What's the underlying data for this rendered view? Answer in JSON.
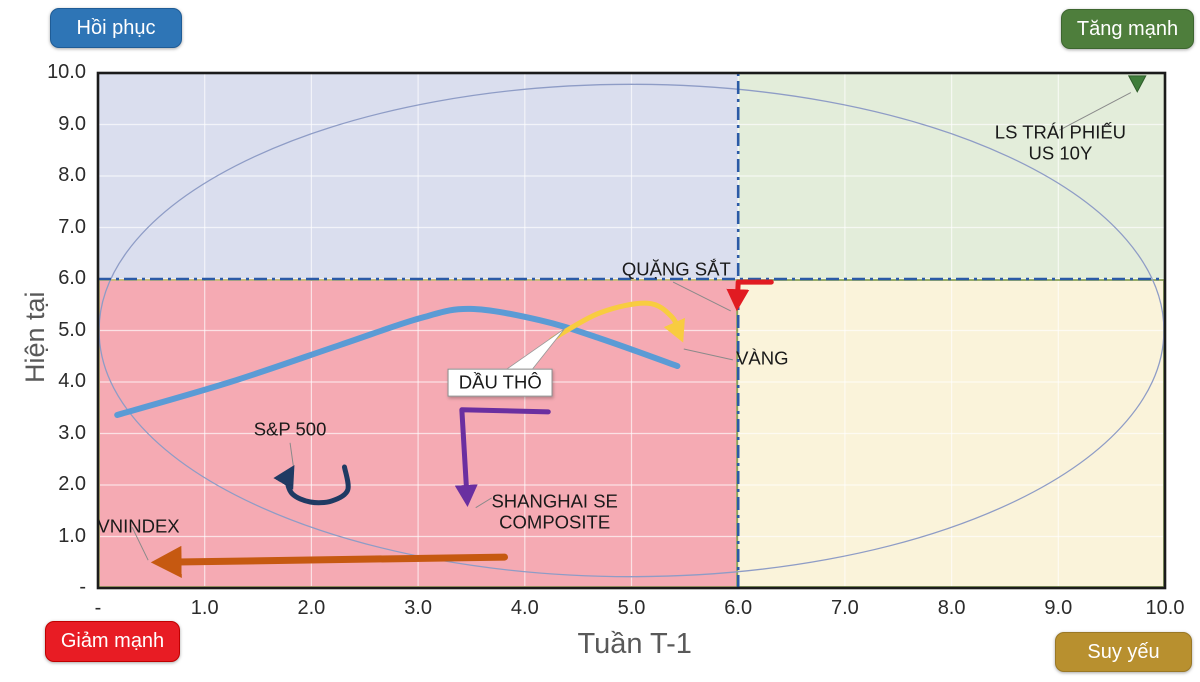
{
  "quadrant_buttons": {
    "top_left": {
      "label": "Hồi phục",
      "bg": "#2e75b6",
      "border": "#1f5c96"
    },
    "top_right": {
      "label": "Tăng mạnh",
      "bg": "#4e7e3c",
      "border": "#3d662f"
    },
    "bottom_left": {
      "label": "Giảm mạnh",
      "bg": "#e81c24",
      "border": "#c00000"
    },
    "bottom_right": {
      "label": "Suy yếu",
      "bg": "#b8902f",
      "border": "#9a7826"
    }
  },
  "chart_data": {
    "type": "scatter",
    "subtype": "relative-rotation-quadrant",
    "xlabel": "Tuần T-1",
    "ylabel": "Hiện tại",
    "xlim": [
      0,
      10
    ],
    "ylim": [
      0,
      10
    ],
    "x_ticks": [
      "-",
      "1.0",
      "2.0",
      "3.0",
      "4.0",
      "5.0",
      "6.0",
      "7.0",
      "8.0",
      "9.0",
      "10.0"
    ],
    "y_ticks": [
      "-",
      "1.0",
      "2.0",
      "3.0",
      "4.0",
      "5.0",
      "6.0",
      "7.0",
      "8.0",
      "9.0",
      "10.0"
    ],
    "grid": true,
    "grid_color": "#ffffff",
    "frame_color": "#1b1b1b",
    "quadrants": {
      "top_left": {
        "name": "Hồi phục",
        "color": "#dadeee"
      },
      "top_right": {
        "name": "Tăng mạnh",
        "color": "#e3edda"
      },
      "bottom_left": {
        "name": "Giảm mạnh",
        "color": "#f5aab3",
        "border": "#c9b97c"
      },
      "bottom_right": {
        "name": "Suy yếu",
        "color": "#faf3da",
        "border": "#8aa35c"
      }
    },
    "crosshair": {
      "x": 6,
      "y": 6,
      "color": "#2b5aa6"
    },
    "ellipse": {
      "cx": 5,
      "cy": 5,
      "rx": 4.99,
      "ry": 4.78,
      "color": "#8e9cc6"
    },
    "series": [
      {
        "name": "DẦU THÔ",
        "type": "curve",
        "color": "#5b9bd5",
        "width": 6,
        "points": [
          [
            0.18,
            3.36
          ],
          [
            1.24,
            4.0
          ],
          [
            2.27,
            4.72
          ],
          [
            3.02,
            5.24
          ],
          [
            3.49,
            5.42
          ],
          [
            4.14,
            5.2
          ],
          [
            4.7,
            4.85
          ],
          [
            5.43,
            4.31
          ]
        ]
      },
      {
        "name": "VÀNG",
        "type": "curve-arrow",
        "color": "#f8cc40",
        "width": 5,
        "points": [
          [
            4.25,
            4.82
          ],
          [
            4.7,
            5.34
          ],
          [
            5.15,
            5.53
          ],
          [
            5.38,
            5.26
          ],
          [
            5.46,
            4.88
          ]
        ]
      },
      {
        "name": "QUẶNG SẮT",
        "type": "elbow-arrow",
        "color": "#e11b22",
        "width": 5,
        "points": [
          [
            6.31,
            5.94
          ],
          [
            6.0,
            5.94
          ],
          [
            5.99,
            5.5
          ]
        ]
      },
      {
        "name": "SHANGHAI SE COMPOSITE",
        "type": "elbow-arrow",
        "color": "#6a2fa0",
        "width": 5,
        "points": [
          [
            4.22,
            3.42
          ],
          [
            3.41,
            3.46
          ],
          [
            3.46,
            1.7
          ]
        ]
      },
      {
        "name": "S&P 500",
        "type": "loop-arrow",
        "color": "#1f3a63",
        "width": 5,
        "points": [
          [
            2.31,
            2.35
          ],
          [
            2.34,
            1.9
          ],
          [
            2.19,
            1.69
          ],
          [
            1.99,
            1.67
          ],
          [
            1.82,
            1.83
          ],
          [
            1.77,
            2.14
          ],
          [
            1.81,
            2.28
          ]
        ]
      },
      {
        "name": "VNINDEX",
        "type": "arrow",
        "color": "#c65911",
        "width": 7,
        "points": [
          [
            3.81,
            0.6
          ],
          [
            0.58,
            0.5
          ]
        ]
      },
      {
        "name": "LS TRÁI PHIẾU US 10Y",
        "type": "marker-triangle",
        "color": "#3f7d3a",
        "width": 0,
        "points": [
          [
            9.74,
            9.79
          ]
        ]
      }
    ],
    "annotations": {
      "quang_sat": {
        "text": "QUẶNG SẮT",
        "x": 5.42,
        "y": 6.17,
        "anchor": "center"
      },
      "vang": {
        "text": "VÀNG",
        "x": 5.98,
        "y": 4.44,
        "anchor": "left"
      },
      "dau_tho": {
        "text": "DẦU THÔ",
        "x": 3.77,
        "y": 3.99,
        "anchor": "center",
        "boxed": true,
        "pointer": [
          [
            3.81,
            4.22
          ],
          [
            4.06,
            4.22
          ],
          [
            4.37,
            5.03
          ]
        ]
      },
      "sp500": {
        "text": "S&P 500",
        "x": 1.8,
        "y": 3.06,
        "anchor": "center"
      },
      "shanghai": {
        "text": "SHANGHAI SE\nCOMPOSITE",
        "x": 4.28,
        "y": 1.47,
        "anchor": "center"
      },
      "vnindex": {
        "text": "VNINDEX",
        "x": 0.38,
        "y": 1.19,
        "anchor": "center"
      },
      "us10y": {
        "text": "LS TRÁI PHIẾU US 10Y",
        "x": 9.02,
        "y": 8.64,
        "anchor": "center"
      }
    },
    "callouts": [
      {
        "from": [
          5.39,
          5.94
        ],
        "to": [
          5.93,
          5.38
        ]
      },
      {
        "from": [
          5.49,
          4.64
        ],
        "to": [
          5.95,
          4.43
        ]
      },
      {
        "from": [
          1.8,
          2.82
        ],
        "to": [
          1.83,
          2.38
        ]
      },
      {
        "from": [
          3.69,
          1.75
        ],
        "to": [
          3.54,
          1.56
        ]
      },
      {
        "from": [
          0.32,
          1.18
        ],
        "to": [
          0.47,
          0.54
        ]
      },
      {
        "from": [
          9.01,
          8.89
        ],
        "to": [
          9.68,
          9.62
        ]
      }
    ],
    "callout_color": "#8a8a8a"
  }
}
